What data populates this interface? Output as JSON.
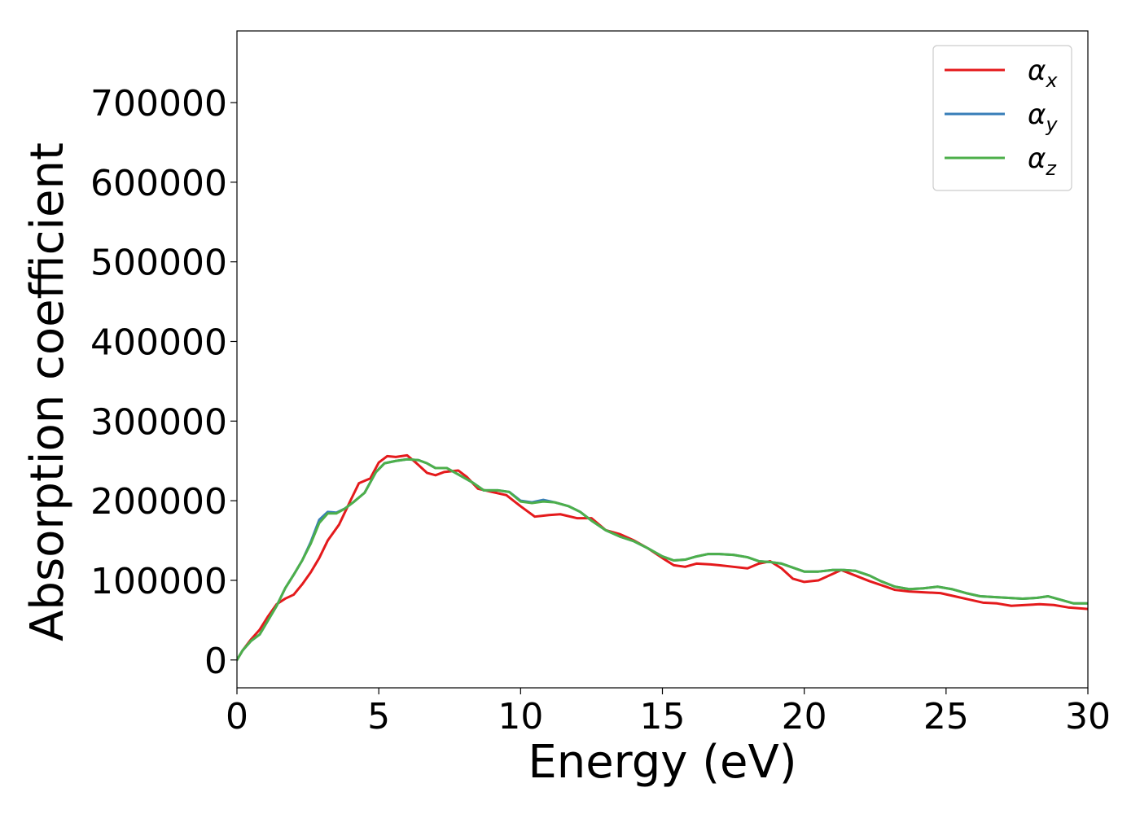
{
  "chart_data": {
    "type": "line",
    "title": "",
    "xlabel": "Energy (eV)",
    "ylabel": "Absorption coefficient",
    "xlim": [
      0,
      30
    ],
    "ylim": [
      -35000,
      790000
    ],
    "x_ticks": [
      0,
      5,
      10,
      15,
      20,
      25,
      30
    ],
    "x_tick_labels": [
      "0",
      "5",
      "10",
      "15",
      "20",
      "25",
      "30"
    ],
    "y_ticks": [
      0,
      100000,
      200000,
      300000,
      400000,
      500000,
      600000,
      700000
    ],
    "y_tick_labels": [
      "0",
      "100000",
      "200000",
      "300000",
      "400000",
      "500000",
      "600000",
      "700000"
    ],
    "grid": false,
    "legend_position": "top-right",
    "series": [
      {
        "name": "αx",
        "legend_base": "α",
        "legend_sub": "x",
        "color": "#e41a1c",
        "points": [
          [
            0,
            0
          ],
          [
            0.2,
            12000
          ],
          [
            0.5,
            26000
          ],
          [
            0.8,
            38000
          ],
          [
            1.1,
            55000
          ],
          [
            1.4,
            70000
          ],
          [
            1.7,
            77000
          ],
          [
            2.0,
            82000
          ],
          [
            2.3,
            95000
          ],
          [
            2.6,
            110000
          ],
          [
            2.9,
            128000
          ],
          [
            3.2,
            150000
          ],
          [
            3.6,
            170000
          ],
          [
            4.0,
            200000
          ],
          [
            4.3,
            222000
          ],
          [
            4.7,
            228000
          ],
          [
            5.0,
            248000
          ],
          [
            5.3,
            256000
          ],
          [
            5.6,
            255000
          ],
          [
            6.0,
            257000
          ],
          [
            6.3,
            248000
          ],
          [
            6.7,
            235000
          ],
          [
            7.0,
            232000
          ],
          [
            7.3,
            236000
          ],
          [
            7.8,
            238000
          ],
          [
            8.1,
            230000
          ],
          [
            8.5,
            215000
          ],
          [
            9.0,
            211000
          ],
          [
            9.5,
            207000
          ],
          [
            10.0,
            193000
          ],
          [
            10.5,
            180000
          ],
          [
            11.0,
            182000
          ],
          [
            11.4,
            183000
          ],
          [
            12.0,
            178000
          ],
          [
            12.5,
            178000
          ],
          [
            13.0,
            163000
          ],
          [
            13.5,
            158000
          ],
          [
            14.0,
            150000
          ],
          [
            14.5,
            140000
          ],
          [
            15.0,
            128000
          ],
          [
            15.4,
            119000
          ],
          [
            15.8,
            117000
          ],
          [
            16.2,
            121000
          ],
          [
            16.7,
            120000
          ],
          [
            17.0,
            119000
          ],
          [
            17.5,
            117000
          ],
          [
            18.0,
            115000
          ],
          [
            18.4,
            121000
          ],
          [
            18.8,
            124000
          ],
          [
            19.2,
            115000
          ],
          [
            19.6,
            102000
          ],
          [
            20.0,
            98000
          ],
          [
            20.5,
            100000
          ],
          [
            21.0,
            108000
          ],
          [
            21.3,
            113000
          ],
          [
            21.8,
            106000
          ],
          [
            22.3,
            99000
          ],
          [
            22.8,
            93000
          ],
          [
            23.2,
            88000
          ],
          [
            23.7,
            86000
          ],
          [
            24.2,
            85000
          ],
          [
            24.8,
            84000
          ],
          [
            25.3,
            80000
          ],
          [
            25.8,
            76000
          ],
          [
            26.3,
            72000
          ],
          [
            26.8,
            71000
          ],
          [
            27.3,
            68000
          ],
          [
            27.8,
            69000
          ],
          [
            28.3,
            70000
          ],
          [
            28.8,
            69000
          ],
          [
            29.3,
            66000
          ],
          [
            30.0,
            64000
          ]
        ]
      },
      {
        "name": "αy",
        "legend_base": "α",
        "legend_sub": "y",
        "color": "#377eb8",
        "points": [
          [
            0,
            0
          ],
          [
            0.2,
            12000
          ],
          [
            0.5,
            24000
          ],
          [
            0.8,
            32000
          ],
          [
            1.1,
            50000
          ],
          [
            1.4,
            68000
          ],
          [
            1.7,
            90000
          ],
          [
            2.0,
            107000
          ],
          [
            2.3,
            125000
          ],
          [
            2.6,
            148000
          ],
          [
            2.9,
            176000
          ],
          [
            3.2,
            186000
          ],
          [
            3.5,
            185000
          ],
          [
            3.8,
            190000
          ],
          [
            4.1,
            198000
          ],
          [
            4.5,
            210000
          ],
          [
            4.9,
            236000
          ],
          [
            5.2,
            247000
          ],
          [
            5.6,
            250000
          ],
          [
            6.0,
            252000
          ],
          [
            6.4,
            251000
          ],
          [
            6.7,
            247000
          ],
          [
            7.0,
            241000
          ],
          [
            7.4,
            241000
          ],
          [
            7.8,
            233000
          ],
          [
            8.3,
            223000
          ],
          [
            8.7,
            213000
          ],
          [
            9.2,
            213000
          ],
          [
            9.6,
            211000
          ],
          [
            10.0,
            200000
          ],
          [
            10.4,
            198000
          ],
          [
            10.8,
            201000
          ],
          [
            11.2,
            198000
          ],
          [
            11.7,
            193000
          ],
          [
            12.1,
            186000
          ],
          [
            12.5,
            175000
          ],
          [
            13.0,
            163000
          ],
          [
            13.5,
            155000
          ],
          [
            14.0,
            149000
          ],
          [
            14.5,
            140000
          ],
          [
            15.0,
            130000
          ],
          [
            15.4,
            125000
          ],
          [
            15.8,
            126000
          ],
          [
            16.2,
            130000
          ],
          [
            16.6,
            133000
          ],
          [
            17.0,
            133000
          ],
          [
            17.5,
            132000
          ],
          [
            18.0,
            129000
          ],
          [
            18.4,
            124000
          ],
          [
            18.8,
            123000
          ],
          [
            19.2,
            121000
          ],
          [
            19.6,
            116000
          ],
          [
            20.0,
            111000
          ],
          [
            20.5,
            111000
          ],
          [
            21.0,
            113000
          ],
          [
            21.4,
            113000
          ],
          [
            21.8,
            112000
          ],
          [
            22.3,
            106000
          ],
          [
            22.7,
            99000
          ],
          [
            23.2,
            92000
          ],
          [
            23.7,
            89000
          ],
          [
            24.2,
            90000
          ],
          [
            24.7,
            92000
          ],
          [
            25.2,
            89000
          ],
          [
            25.7,
            84000
          ],
          [
            26.2,
            80000
          ],
          [
            26.7,
            79000
          ],
          [
            27.2,
            78000
          ],
          [
            27.7,
            77000
          ],
          [
            28.2,
            78000
          ],
          [
            28.6,
            80000
          ],
          [
            29.0,
            76000
          ],
          [
            29.5,
            71000
          ],
          [
            30.0,
            71000
          ]
        ]
      },
      {
        "name": "αz",
        "legend_base": "α",
        "legend_sub": "z",
        "color": "#4daf4a",
        "points": [
          [
            0,
            0
          ],
          [
            0.2,
            12000
          ],
          [
            0.5,
            24000
          ],
          [
            0.8,
            32000
          ],
          [
            1.1,
            50000
          ],
          [
            1.4,
            68000
          ],
          [
            1.7,
            90000
          ],
          [
            2.0,
            107000
          ],
          [
            2.3,
            125000
          ],
          [
            2.6,
            146000
          ],
          [
            2.9,
            172000
          ],
          [
            3.2,
            184000
          ],
          [
            3.5,
            184000
          ],
          [
            3.8,
            190000
          ],
          [
            4.1,
            198000
          ],
          [
            4.5,
            210000
          ],
          [
            4.9,
            236000
          ],
          [
            5.2,
            247000
          ],
          [
            5.6,
            250000
          ],
          [
            6.0,
            252000
          ],
          [
            6.4,
            251000
          ],
          [
            6.7,
            247000
          ],
          [
            7.0,
            241000
          ],
          [
            7.4,
            241000
          ],
          [
            7.8,
            233000
          ],
          [
            8.3,
            223000
          ],
          [
            8.7,
            213000
          ],
          [
            9.2,
            213000
          ],
          [
            9.6,
            211000
          ],
          [
            10.0,
            199000
          ],
          [
            10.4,
            197000
          ],
          [
            10.8,
            199000
          ],
          [
            11.2,
            198000
          ],
          [
            11.7,
            193000
          ],
          [
            12.1,
            186000
          ],
          [
            12.5,
            175000
          ],
          [
            13.0,
            163000
          ],
          [
            13.5,
            155000
          ],
          [
            14.0,
            149000
          ],
          [
            14.5,
            140000
          ],
          [
            15.0,
            130000
          ],
          [
            15.4,
            125000
          ],
          [
            15.8,
            126000
          ],
          [
            16.2,
            130000
          ],
          [
            16.6,
            133000
          ],
          [
            17.0,
            133000
          ],
          [
            17.5,
            132000
          ],
          [
            18.0,
            129000
          ],
          [
            18.4,
            124000
          ],
          [
            18.8,
            123000
          ],
          [
            19.2,
            121000
          ],
          [
            19.6,
            116000
          ],
          [
            20.0,
            111000
          ],
          [
            20.5,
            111000
          ],
          [
            21.0,
            113000
          ],
          [
            21.4,
            113000
          ],
          [
            21.8,
            112000
          ],
          [
            22.3,
            106000
          ],
          [
            22.7,
            99000
          ],
          [
            23.2,
            92000
          ],
          [
            23.7,
            89000
          ],
          [
            24.2,
            90000
          ],
          [
            24.7,
            92000
          ],
          [
            25.2,
            89000
          ],
          [
            25.7,
            84000
          ],
          [
            26.2,
            80000
          ],
          [
            26.7,
            79000
          ],
          [
            27.2,
            78000
          ],
          [
            27.7,
            77000
          ],
          [
            28.2,
            78000
          ],
          [
            28.6,
            80000
          ],
          [
            29.0,
            76000
          ],
          [
            29.5,
            71000
          ],
          [
            30.0,
            71000
          ]
        ]
      }
    ]
  }
}
